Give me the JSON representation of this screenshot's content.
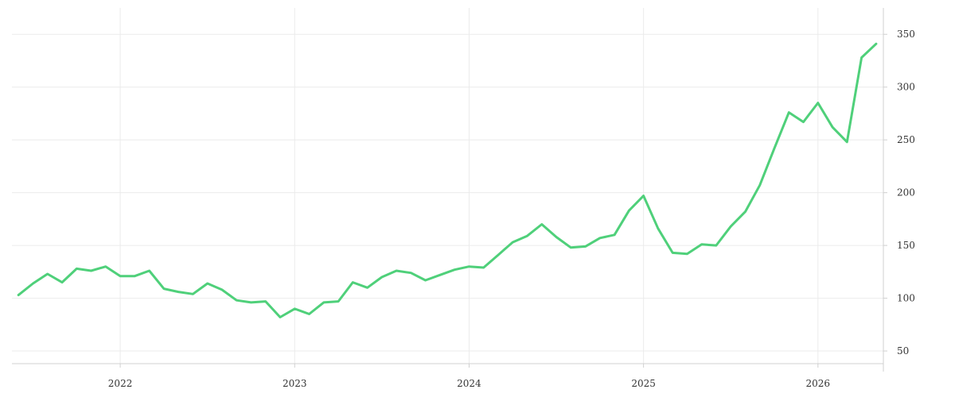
{
  "chart_data": {
    "type": "line",
    "title": "",
    "xlabel": "",
    "ylabel": "",
    "grid": true,
    "colors": {
      "series": "#4fd07a",
      "grid": "#ebebeb",
      "axis": "#d0d0d0",
      "text": "#333333"
    },
    "x_ticks": [
      "2022",
      "2023",
      "2024",
      "2025",
      "2026"
    ],
    "y_ticks": [
      50,
      100,
      150,
      200,
      250,
      300,
      350
    ],
    "xlim": [
      "2021-06",
      "2026-05"
    ],
    "ylim": [
      38,
      375
    ],
    "y_axis_position": "right",
    "series": [
      {
        "x": [
          "2021-06",
          "2021-07",
          "2021-08",
          "2021-09",
          "2021-10",
          "2021-11",
          "2021-12",
          "2022-01",
          "2022-02",
          "2022-03",
          "2022-04",
          "2022-05",
          "2022-06",
          "2022-07",
          "2022-08",
          "2022-09",
          "2022-10",
          "2022-11",
          "2022-12",
          "2023-01",
          "2023-02",
          "2023-03",
          "2023-04",
          "2023-05",
          "2023-06",
          "2023-07",
          "2023-08",
          "2023-09",
          "2023-10",
          "2023-11",
          "2023-12",
          "2024-01",
          "2024-02",
          "2024-03",
          "2024-04",
          "2024-05",
          "2024-06",
          "2024-07",
          "2024-08",
          "2024-09",
          "2024-10",
          "2024-11",
          "2024-12",
          "2025-01",
          "2025-02",
          "2025-03",
          "2025-04",
          "2025-05",
          "2025-06",
          "2025-07",
          "2025-08",
          "2025-09",
          "2025-10",
          "2025-11",
          "2025-12",
          "2026-01",
          "2026-02",
          "2026-03",
          "2026-04",
          "2026-05"
        ],
        "values": [
          103,
          114,
          123,
          115,
          128,
          126,
          130,
          121,
          121,
          126,
          109,
          106,
          104,
          114,
          108,
          98,
          96,
          97,
          82,
          90,
          85,
          96,
          97,
          115,
          110,
          120,
          126,
          124,
          117,
          122,
          127,
          130,
          129,
          141,
          153,
          159,
          170,
          158,
          148,
          149,
          157,
          160,
          183,
          197,
          166,
          143,
          142,
          151,
          150,
          168,
          182,
          207,
          242,
          276,
          267,
          285,
          262,
          248,
          328,
          341
        ]
      }
    ]
  }
}
